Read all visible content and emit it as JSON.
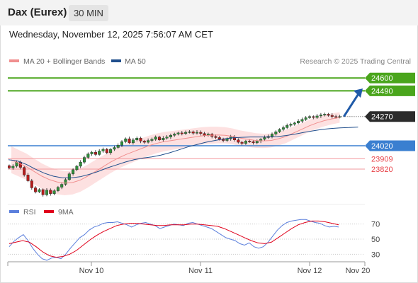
{
  "header": {
    "title": "Dax (Eurex)",
    "timeframe": "30 MIN",
    "datetime": "Wednesday, November 12, 2025 7:56:07 AM CET"
  },
  "chart_data": [
    {
      "type": "candlestick",
      "legend": [
        {
          "label": "MA 20 + Bollinger Bands",
          "color": "#f08f8f"
        },
        {
          "label": "MA 50",
          "color": "#1f4e8c"
        }
      ],
      "credit": "Research © 2025 Trading Central",
      "ylim": [
        23560,
        24680
      ],
      "levels": [
        {
          "value": 24600,
          "label": "24600",
          "kind": "target",
          "color": "#4aa51c"
        },
        {
          "value": 24490,
          "label": "24490",
          "kind": "target",
          "color": "#4aa51c"
        },
        {
          "value": 24270,
          "label": "24270",
          "kind": "last",
          "color": "#2b2b2b"
        },
        {
          "value": 24020,
          "label": "24020",
          "kind": "pivot",
          "color": "#3a7fd0"
        },
        {
          "value": 23909,
          "label": "23909",
          "kind": "support",
          "color": "#e8444a"
        },
        {
          "value": 23820,
          "label": "23820",
          "kind": "support",
          "color": "#e8444a"
        }
      ],
      "closes": [
        23830,
        23845,
        23880,
        23835,
        23770,
        23720,
        23660,
        23625,
        23645,
        23600,
        23640,
        23610,
        23635,
        23665,
        23690,
        23730,
        23780,
        23815,
        23845,
        23880,
        23920,
        23950,
        23965,
        23945,
        23975,
        23990,
        23960,
        23990,
        24005,
        24025,
        24055,
        24080,
        24045,
        24070,
        24085,
        24060,
        24050,
        24065,
        24075,
        24095,
        24070,
        24085,
        24095,
        24110,
        24120,
        24130,
        24125,
        24135,
        24140,
        24128,
        24135,
        24125,
        24110,
        24120,
        24100,
        24090,
        24075,
        24065,
        24080,
        24095,
        24070,
        24050,
        24040,
        24060,
        24055,
        24045,
        24060,
        24075,
        24090,
        24100,
        24120,
        24140,
        24160,
        24175,
        24195,
        24205,
        24215,
        24230,
        24245,
        24260,
        24270,
        24262,
        24275,
        24285,
        24290,
        24280,
        24270,
        24265,
        24270
      ],
      "ma20": [
        23900,
        23870,
        23840,
        23800,
        23760,
        23730,
        23710,
        23700,
        23705,
        23725,
        23760,
        23800,
        23840,
        23880,
        23915,
        23945,
        23970,
        23995,
        24020,
        24040,
        24055,
        24065,
        24075,
        24085,
        24095,
        24105,
        24110,
        24112,
        24110,
        24100,
        24085,
        24075,
        24065,
        24062,
        24065,
        24080,
        24100,
        24130,
        24160,
        24190,
        24215,
        24235,
        24250,
        24262
      ],
      "ma50": [
        23900,
        23890,
        23860,
        23820,
        23785,
        23760,
        23745,
        23745,
        23755,
        23775,
        23800,
        23830,
        23855,
        23880,
        23900,
        23915,
        23925,
        23940,
        23960,
        23985,
        24010,
        24030,
        24050,
        24065,
        24078,
        24088,
        24092,
        24095,
        24095,
        24095,
        24098,
        24108,
        24120,
        24135,
        24148,
        24160,
        24168,
        24173,
        24176,
        24180
      ],
      "projection": {
        "from": 24270,
        "to": 24510
      },
      "x_ticks": [
        "Nov 10",
        "Nov 11",
        "Nov 12",
        "Nov 20"
      ]
    },
    {
      "type": "line",
      "series": [
        {
          "name": "RSI",
          "color": "#5b7fdc",
          "values": [
            40,
            47,
            52,
            56,
            48,
            38,
            30,
            24,
            22,
            25,
            26,
            24,
            30,
            38,
            45,
            52,
            56,
            62,
            66,
            68,
            71,
            72,
            72,
            73,
            71,
            69,
            66,
            69,
            71,
            72,
            70,
            68,
            64,
            66,
            68,
            70,
            69,
            68,
            71,
            72,
            70,
            68,
            66,
            64,
            60,
            56,
            52,
            50,
            48,
            44,
            42,
            45,
            40,
            38,
            40,
            46,
            54,
            62,
            68,
            72,
            74,
            75,
            76,
            76,
            74,
            72,
            71,
            68,
            66,
            67,
            66
          ]
        },
        {
          "name": "9MA",
          "color": "#e0001a",
          "values": [
            44,
            46,
            48,
            46,
            40,
            33,
            28,
            26,
            27,
            30,
            35,
            42,
            49,
            55,
            60,
            64,
            68,
            70,
            71,
            71,
            70,
            69,
            68,
            68,
            69,
            69,
            69,
            70,
            70,
            69,
            68,
            67,
            64,
            60,
            56,
            52,
            48,
            45,
            44,
            46,
            52,
            58,
            64,
            69,
            72,
            74,
            74,
            73,
            71,
            69
          ]
        }
      ],
      "ylim": [
        20,
        80
      ],
      "y_ticks": [
        70,
        50,
        30
      ]
    }
  ]
}
